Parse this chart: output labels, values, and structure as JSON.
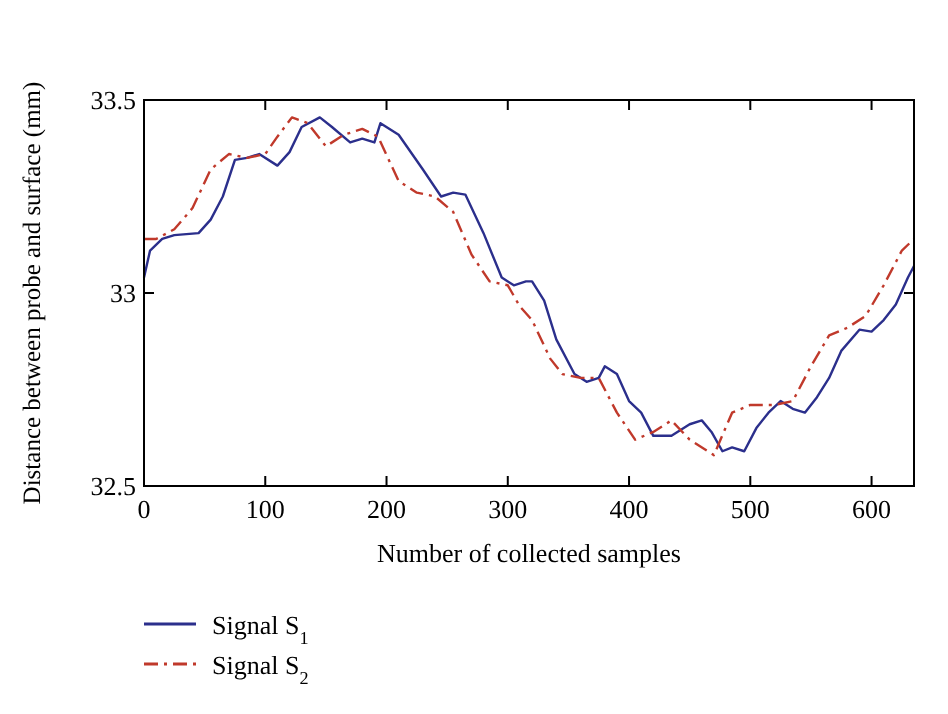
{
  "chart_data": {
    "type": "line",
    "xlabel": "Number of collected samples",
    "ylabel": "Distance between probe and surface (mm)",
    "xlim": [
      0,
      635
    ],
    "ylim": [
      32.5,
      33.5
    ],
    "xticks": [
      0,
      100,
      200,
      300,
      400,
      500,
      600
    ],
    "yticks": [
      32.5,
      33,
      33.5
    ],
    "grid": false,
    "legend": "bottom left",
    "marker": "none",
    "series": [
      {
        "name": "Signal S$_{1}$",
        "color": "#2b2f8c",
        "line_style": "solid",
        "x": [
          0,
          5,
          15,
          25,
          45,
          55,
          65,
          75,
          85,
          95,
          110,
          120,
          130,
          145,
          155,
          170,
          180,
          190,
          195,
          210,
          230,
          245,
          255,
          265,
          280,
          295,
          305,
          315,
          320,
          330,
          340,
          355,
          365,
          375,
          380,
          390,
          400,
          410,
          420,
          435,
          450,
          460,
          468,
          477,
          485,
          495,
          505,
          515,
          525,
          535,
          545,
          555,
          565,
          575,
          590,
          600,
          610,
          620,
          630,
          635
        ],
        "values": [
          33.04,
          33.11,
          33.14,
          33.15,
          33.155,
          33.19,
          33.25,
          33.345,
          33.35,
          33.36,
          33.33,
          33.365,
          33.43,
          33.455,
          33.43,
          33.39,
          33.4,
          33.39,
          33.44,
          33.41,
          33.32,
          33.25,
          33.26,
          33.255,
          33.155,
          33.04,
          33.02,
          33.03,
          33.03,
          32.98,
          32.88,
          32.79,
          32.77,
          32.78,
          32.81,
          32.79,
          32.72,
          32.69,
          32.63,
          32.63,
          32.66,
          32.67,
          32.64,
          32.59,
          32.6,
          32.59,
          32.65,
          32.69,
          32.72,
          32.7,
          32.69,
          32.73,
          32.78,
          32.85,
          32.905,
          32.9,
          32.93,
          32.97,
          33.04,
          33.07
        ]
      },
      {
        "name": "Signal S$_{2}$",
        "color": "#c0392b",
        "line_style": "dashed",
        "x": [
          0,
          10,
          25,
          40,
          55,
          70,
          85,
          100,
          110,
          122,
          135,
          150,
          165,
          180,
          193,
          210,
          225,
          240,
          255,
          270,
          285,
          300,
          310,
          320,
          335,
          345,
          360,
          375,
          390,
          405,
          420,
          435,
          450,
          470,
          485,
          500,
          520,
          535,
          550,
          565,
          580,
          595,
          610,
          625,
          635
        ],
        "values": [
          33.14,
          33.14,
          33.165,
          33.22,
          33.32,
          33.36,
          33.35,
          33.36,
          33.405,
          33.455,
          33.44,
          33.38,
          33.41,
          33.425,
          33.405,
          33.29,
          33.26,
          33.25,
          33.21,
          33.1,
          33.03,
          33.02,
          32.965,
          32.93,
          32.83,
          32.79,
          32.78,
          32.78,
          32.69,
          32.62,
          32.64,
          32.67,
          32.62,
          32.58,
          32.69,
          32.71,
          32.71,
          32.72,
          32.81,
          32.89,
          32.91,
          32.94,
          33.02,
          33.11,
          33.14
        ]
      }
    ]
  }
}
